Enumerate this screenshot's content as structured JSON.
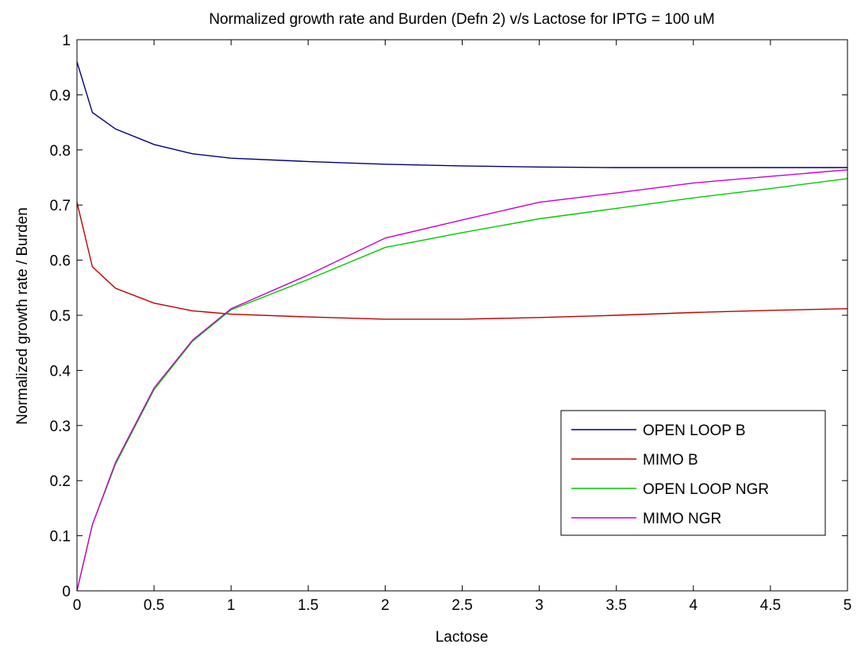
{
  "chart_data": {
    "type": "line",
    "title": "Normalized growth rate and Burden (Defn 2) v/s Lactose for IPTG = 100 uM",
    "xlabel": "Lactose",
    "ylabel": "Normalized growth rate / Burden",
    "xlim": [
      0,
      5
    ],
    "ylim": [
      0,
      1
    ],
    "xticks": [
      0,
      0.5,
      1,
      1.5,
      2,
      2.5,
      3,
      3.5,
      4,
      4.5,
      5
    ],
    "xtick_labels": [
      "0",
      "0.5",
      "1",
      "1.5",
      "2",
      "2.5",
      "3",
      "3.5",
      "4",
      "4.5",
      "5"
    ],
    "yticks": [
      0,
      0.1,
      0.2,
      0.3,
      0.4,
      0.5,
      0.6,
      0.7,
      0.8,
      0.9,
      1
    ],
    "ytick_labels": [
      "0",
      "0.1",
      "0.2",
      "0.3",
      "0.4",
      "0.5",
      "0.6",
      "0.7",
      "0.8",
      "0.9",
      "1"
    ],
    "grid": false,
    "legend_position": "bottom-right",
    "series": [
      {
        "name": "OPEN LOOP B",
        "color": "#00007f",
        "x": [
          0,
          0.1,
          0.25,
          0.5,
          0.75,
          1,
          1.5,
          2,
          2.5,
          3,
          3.5,
          4,
          4.5,
          5
        ],
        "y": [
          0.96,
          0.868,
          0.838,
          0.81,
          0.793,
          0.785,
          0.779,
          0.774,
          0.771,
          0.769,
          0.768,
          0.768,
          0.768,
          0.768
        ]
      },
      {
        "name": "MIMO B",
        "color": "#bf0000",
        "x": [
          0,
          0.1,
          0.25,
          0.5,
          0.75,
          1,
          1.5,
          2,
          2.5,
          3,
          3.5,
          4,
          4.5,
          5
        ],
        "y": [
          0.705,
          0.588,
          0.549,
          0.522,
          0.508,
          0.502,
          0.497,
          0.493,
          0.493,
          0.496,
          0.5,
          0.505,
          0.509,
          0.512
        ]
      },
      {
        "name": "OPEN LOOP NGR",
        "color": "#00cc00",
        "x": [
          0,
          0.1,
          0.25,
          0.5,
          0.75,
          1,
          1.5,
          2,
          2.5,
          3,
          3.5,
          4,
          4.5,
          5
        ],
        "y": [
          0,
          0.12,
          0.23,
          0.365,
          0.453,
          0.51,
          0.565,
          0.623,
          0.65,
          0.675,
          0.694,
          0.713,
          0.73,
          0.748
        ]
      },
      {
        "name": "MIMO NGR",
        "color": "#cc00cc",
        "x": [
          0,
          0.1,
          0.25,
          0.5,
          0.75,
          1,
          1.5,
          2,
          2.5,
          3,
          3.5,
          4,
          4.5,
          5
        ],
        "y": [
          0,
          0.12,
          0.233,
          0.368,
          0.455,
          0.512,
          0.573,
          0.64,
          0.673,
          0.705,
          0.722,
          0.74,
          0.752,
          0.764
        ]
      }
    ]
  }
}
